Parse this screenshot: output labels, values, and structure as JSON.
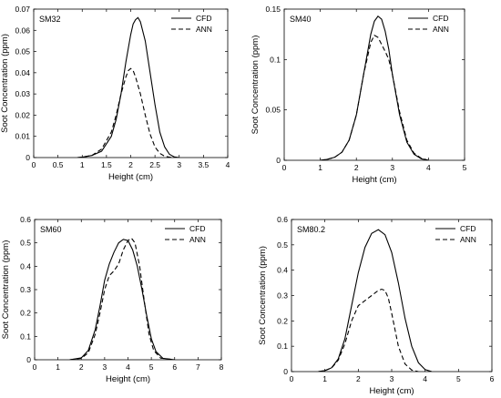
{
  "chart_data": [
    {
      "type": "line",
      "title": "SM32",
      "xlabel": "Height (cm)",
      "ylabel": "Soot Concentration (ppm)",
      "xlim": [
        0,
        4
      ],
      "ylim": [
        0,
        0.07
      ],
      "xticks": [
        "0",
        "0.5",
        "1",
        "1.5",
        "2",
        "2.5",
        "3",
        "3.5",
        "4"
      ],
      "yticks": [
        "0",
        "0.01",
        "0.02",
        "0.03",
        "0.04",
        "0.05",
        "0.06",
        "0.07"
      ],
      "legend": "top-right",
      "series": [
        {
          "name": "CFD",
          "style": "solid",
          "x": [
            0.9,
            1.0,
            1.2,
            1.4,
            1.6,
            1.7,
            1.8,
            1.9,
            2.0,
            2.05,
            2.1,
            2.15,
            2.2,
            2.3,
            2.4,
            2.5,
            2.6,
            2.7,
            2.8,
            2.9,
            3.0
          ],
          "y": [
            0.0,
            0.0002,
            0.001,
            0.003,
            0.01,
            0.018,
            0.03,
            0.045,
            0.058,
            0.063,
            0.065,
            0.066,
            0.064,
            0.055,
            0.04,
            0.025,
            0.012,
            0.005,
            0.0015,
            0.0003,
            0.0
          ]
        },
        {
          "name": "ANN",
          "style": "dashed",
          "x": [
            0.9,
            1.0,
            1.2,
            1.4,
            1.6,
            1.7,
            1.8,
            1.9,
            1.95,
            2.0,
            2.05,
            2.1,
            2.2,
            2.3,
            2.4,
            2.5,
            2.6,
            2.7,
            2.8,
            2.9
          ],
          "y": [
            0.0,
            0.0002,
            0.001,
            0.004,
            0.012,
            0.02,
            0.03,
            0.038,
            0.041,
            0.042,
            0.041,
            0.038,
            0.03,
            0.02,
            0.011,
            0.005,
            0.002,
            0.0006,
            0.0002,
            0.0
          ]
        }
      ]
    },
    {
      "type": "line",
      "title": "SM40",
      "xlabel": "Height (cm)",
      "ylabel": "Soot Concentration (ppm)",
      "xlim": [
        0,
        5
      ],
      "ylim": [
        0,
        0.15
      ],
      "xticks": [
        "0",
        "1",
        "2",
        "3",
        "4",
        "5"
      ],
      "yticks": [
        "0",
        "0.05",
        "0.1",
        "0.15"
      ],
      "legend": "top-right",
      "series": [
        {
          "name": "CFD",
          "style": "solid",
          "x": [
            1.0,
            1.2,
            1.4,
            1.6,
            1.8,
            2.0,
            2.2,
            2.4,
            2.5,
            2.6,
            2.7,
            2.8,
            2.9,
            3.0,
            3.2,
            3.4,
            3.6,
            3.8,
            4.0
          ],
          "y": [
            0.0,
            0.001,
            0.003,
            0.008,
            0.02,
            0.045,
            0.085,
            0.125,
            0.138,
            0.143,
            0.14,
            0.128,
            0.11,
            0.085,
            0.045,
            0.018,
            0.006,
            0.0015,
            0.0
          ]
        },
        {
          "name": "ANN",
          "style": "dashed",
          "x": [
            1.0,
            1.2,
            1.4,
            1.6,
            1.8,
            2.0,
            2.2,
            2.4,
            2.5,
            2.6,
            2.7,
            2.8,
            2.9,
            3.0,
            3.2,
            3.4,
            3.6,
            3.8,
            4.0
          ],
          "y": [
            0.0,
            0.001,
            0.003,
            0.008,
            0.02,
            0.045,
            0.085,
            0.117,
            0.124,
            0.122,
            0.115,
            0.108,
            0.1,
            0.085,
            0.048,
            0.02,
            0.007,
            0.002,
            0.0
          ]
        }
      ]
    },
    {
      "type": "line",
      "title": "SM60",
      "xlabel": "Height (cm)",
      "ylabel": "Soot Concentration (ppm)",
      "xlim": [
        0,
        8
      ],
      "ylim": [
        0,
        0.6
      ],
      "xticks": [
        "0",
        "1",
        "2",
        "3",
        "4",
        "5",
        "6",
        "7",
        "8"
      ],
      "yticks": [
        "0",
        "0.1",
        "0.2",
        "0.3",
        "0.4",
        "0.5",
        "0.6"
      ],
      "legend": "top-right",
      "series": [
        {
          "name": "CFD",
          "style": "solid",
          "x": [
            1.5,
            2.0,
            2.3,
            2.6,
            2.8,
            3.0,
            3.2,
            3.4,
            3.6,
            3.8,
            4.0,
            4.2,
            4.4,
            4.6,
            4.8,
            5.0,
            5.2,
            5.5,
            6.0
          ],
          "y": [
            0.0,
            0.008,
            0.04,
            0.13,
            0.23,
            0.34,
            0.41,
            0.46,
            0.5,
            0.515,
            0.51,
            0.47,
            0.4,
            0.3,
            0.19,
            0.09,
            0.035,
            0.006,
            0.0
          ]
        },
        {
          "name": "ANN",
          "style": "dashed",
          "x": [
            1.5,
            2.0,
            2.3,
            2.6,
            2.8,
            3.0,
            3.2,
            3.4,
            3.6,
            3.8,
            4.0,
            4.15,
            4.3,
            4.5,
            4.7,
            4.9,
            5.1,
            5.4,
            6.0
          ],
          "y": [
            0.0,
            0.006,
            0.03,
            0.11,
            0.2,
            0.3,
            0.36,
            0.38,
            0.41,
            0.47,
            0.51,
            0.52,
            0.5,
            0.4,
            0.25,
            0.11,
            0.04,
            0.007,
            0.0
          ]
        }
      ]
    },
    {
      "type": "line",
      "title": "SM80.2",
      "xlabel": "Height (cm)",
      "ylabel": "Soot Concentration (ppm)",
      "xlim": [
        0,
        6
      ],
      "ylim": [
        0,
        0.6
      ],
      "xticks": [
        "0",
        "1",
        "2",
        "3",
        "4",
        "5",
        "6"
      ],
      "yticks": [
        "0",
        "0.1",
        "0.2",
        "0.3",
        "0.4",
        "0.5",
        "0.6"
      ],
      "legend": "top-right",
      "series": [
        {
          "name": "CFD",
          "style": "solid",
          "x": [
            0.8,
            1.0,
            1.2,
            1.4,
            1.6,
            1.8,
            2.0,
            2.2,
            2.4,
            2.6,
            2.8,
            3.0,
            3.2,
            3.4,
            3.6,
            3.8,
            4.0,
            4.2
          ],
          "y": [
            0.0,
            0.004,
            0.015,
            0.05,
            0.13,
            0.26,
            0.39,
            0.49,
            0.545,
            0.56,
            0.54,
            0.47,
            0.35,
            0.21,
            0.1,
            0.035,
            0.008,
            0.0
          ]
        },
        {
          "name": "ANN",
          "style": "dashed",
          "x": [
            0.8,
            1.0,
            1.2,
            1.4,
            1.6,
            1.8,
            2.0,
            2.2,
            2.4,
            2.6,
            2.7,
            2.8,
            2.9,
            3.0,
            3.2,
            3.4,
            3.6,
            3.8
          ],
          "y": [
            0.0,
            0.004,
            0.014,
            0.045,
            0.11,
            0.2,
            0.26,
            0.28,
            0.3,
            0.32,
            0.325,
            0.32,
            0.29,
            0.23,
            0.1,
            0.03,
            0.006,
            0.0
          ]
        }
      ]
    }
  ]
}
